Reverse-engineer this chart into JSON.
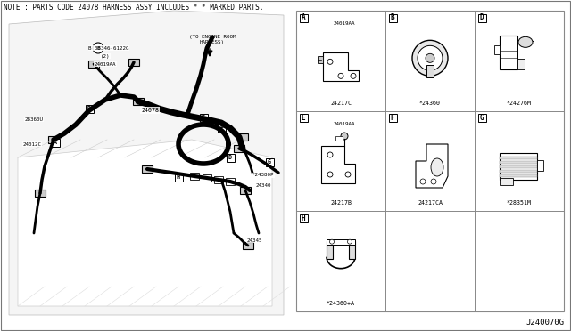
{
  "title": "NOTE : PARTS CODE 24078 HARNESS ASSY INCLUDES * * MARKED PARTS.",
  "diagram_id": "J240070G",
  "bg_color": "#ffffff",
  "grid_color": "#999999",
  "cells": [
    {
      "label": "A",
      "parts": [
        "24019AA",
        "24217C"
      ],
      "row": 0,
      "col": 0
    },
    {
      "label": "B",
      "parts": [
        "*24360"
      ],
      "row": 0,
      "col": 1
    },
    {
      "label": "D",
      "parts": [
        "*24276M"
      ],
      "row": 0,
      "col": 2
    },
    {
      "label": "E",
      "parts": [
        "24019AA",
        "24217B"
      ],
      "row": 1,
      "col": 0
    },
    {
      "label": "F",
      "parts": [
        "24217CA"
      ],
      "row": 1,
      "col": 1
    },
    {
      "label": "G",
      "parts": [
        "*28351M"
      ],
      "row": 1,
      "col": 2
    },
    {
      "label": "H",
      "parts": [
        "*24360+A"
      ],
      "row": 2,
      "col": 0
    }
  ],
  "font_size_small": 5.0,
  "font_size_note": 5.5,
  "font_size_id": 6.5
}
